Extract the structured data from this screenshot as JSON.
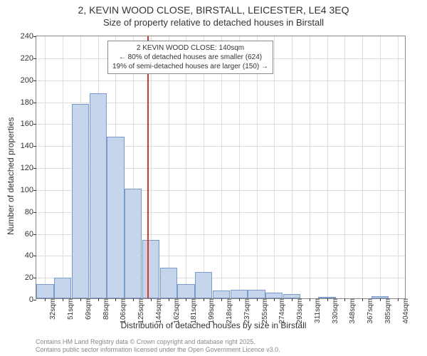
{
  "titles": {
    "line1": "2, KEVIN WOOD CLOSE, BIRSTALL, LEICESTER, LE4 3EQ",
    "line2": "Size of property relative to detached houses in Birstall"
  },
  "chart": {
    "type": "histogram",
    "ylabel": "Number of detached properties",
    "xlabel": "Distribution of detached houses by size in Birstall",
    "ylim": [
      0,
      240
    ],
    "ytick_step": 20,
    "bar_fill": "#c4d5ec",
    "bar_border": "#7a9bc9",
    "grid_color": "#dddddd",
    "background_color": "#ffffff",
    "axis_color": "#888888",
    "x_categories": [
      "32sqm",
      "51sqm",
      "69sqm",
      "88sqm",
      "106sqm",
      "125sqm",
      "144sqm",
      "162sqm",
      "181sqm",
      "199sqm",
      "218sqm",
      "237sqm",
      "255sqm",
      "274sqm",
      "293sqm",
      "311sqm",
      "330sqm",
      "348sqm",
      "367sqm",
      "385sqm",
      "404sqm"
    ],
    "bars": [
      {
        "x": 32,
        "h": 13
      },
      {
        "x": 51,
        "h": 19
      },
      {
        "x": 69,
        "h": 177
      },
      {
        "x": 88,
        "h": 187
      },
      {
        "x": 106,
        "h": 147
      },
      {
        "x": 125,
        "h": 100
      },
      {
        "x": 144,
        "h": 53
      },
      {
        "x": 162,
        "h": 28
      },
      {
        "x": 181,
        "h": 13
      },
      {
        "x": 199,
        "h": 24
      },
      {
        "x": 218,
        "h": 7
      },
      {
        "x": 237,
        "h": 8
      },
      {
        "x": 255,
        "h": 8
      },
      {
        "x": 274,
        "h": 5
      },
      {
        "x": 293,
        "h": 4
      },
      {
        "x": 311,
        "h": 0
      },
      {
        "x": 330,
        "h": 1
      },
      {
        "x": 348,
        "h": 0
      },
      {
        "x": 367,
        "h": 0
      },
      {
        "x": 385,
        "h": 2
      },
      {
        "x": 404,
        "h": 0
      }
    ],
    "marker": {
      "x_value": 140,
      "color": "#e03030"
    },
    "annotation": {
      "line1": "2 KEVIN WOOD CLOSE: 140sqm",
      "line2": "← 80% of detached houses are smaller (624)",
      "line3": "19% of semi-detached houses are larger (150) →",
      "border_color": "#888888",
      "bg_color": "#ffffff",
      "fontsize": 10
    }
  },
  "footer": {
    "line1": "Contains HM Land Registry data © Crown copyright and database right 2025.",
    "line2": "Contains public sector information licensed under the Open Government Licence v3.0."
  }
}
